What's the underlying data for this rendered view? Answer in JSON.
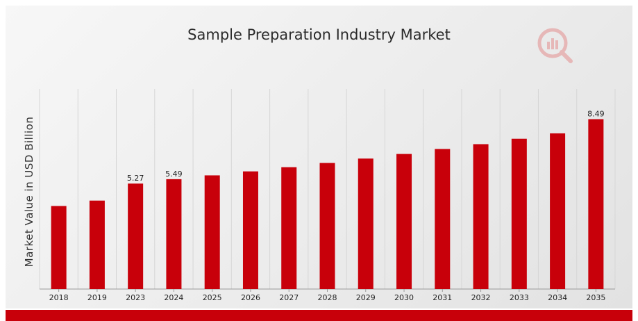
{
  "chart_data": {
    "type": "bar",
    "title": "Sample Preparation Industry Market",
    "xlabel": "",
    "ylabel": "Market Value in USD Billion",
    "categories": [
      "2018",
      "2019",
      "2023",
      "2024",
      "2025",
      "2026",
      "2027",
      "2028",
      "2029",
      "2030",
      "2031",
      "2032",
      "2033",
      "2034",
      "2035"
    ],
    "values": [
      4.15,
      4.42,
      5.27,
      5.49,
      5.68,
      5.88,
      6.09,
      6.3,
      6.52,
      6.75,
      7.0,
      7.24,
      7.51,
      7.78,
      8.49
    ],
    "data_labels": [
      {
        "index": 2,
        "text": "5.27"
      },
      {
        "index": 3,
        "text": "5.49"
      },
      {
        "index": 14,
        "text": "8.49"
      }
    ],
    "ylim": [
      0,
      10
    ],
    "grid": "vertical",
    "color": "#c8000a"
  }
}
